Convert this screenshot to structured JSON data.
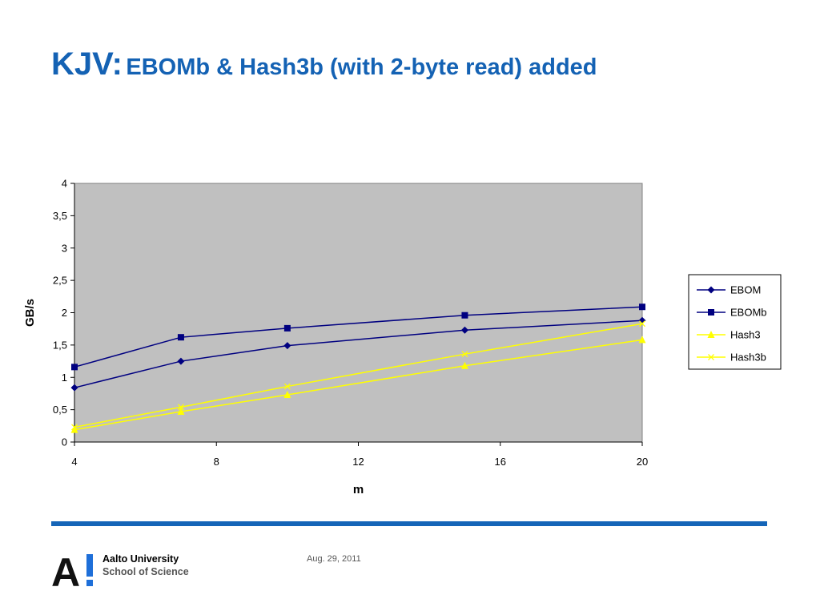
{
  "slide": {
    "title_main": "KJV:",
    "title_sub": "EBOMb & Hash3b (with 2-byte read) added",
    "footer": {
      "university_line1": "Aalto University",
      "university_line2": "School of Science",
      "logo_text": "A!",
      "date": "Aug. 29, 2011"
    }
  },
  "colors": {
    "title": "#1462b4",
    "rule": "#1565b8",
    "plot_background": "#c0c0c0",
    "logo_a": "#111111",
    "logo_bang": "#1e6fd9"
  },
  "chart_data": {
    "type": "line",
    "xlabel": "m",
    "ylabel": "GB/s",
    "xlim": [
      4,
      20
    ],
    "ylim": [
      0,
      4
    ],
    "xticks": [
      4,
      8,
      12,
      16,
      20
    ],
    "xtick_labels": [
      "4",
      "8",
      "12",
      "16",
      "20"
    ],
    "yticks": [
      0,
      0.5,
      1,
      1.5,
      2,
      2.5,
      3,
      3.5,
      4
    ],
    "ytick_labels": [
      "0",
      "0,5",
      "1",
      "1,5",
      "2",
      "2,5",
      "3",
      "3,5",
      "4"
    ],
    "grid": false,
    "legend_position": "right",
    "x": [
      4,
      7,
      10,
      15,
      20
    ],
    "series": [
      {
        "name": "EBOM",
        "values": [
          0.84,
          1.25,
          1.49,
          1.73,
          1.88
        ],
        "color": "#000080",
        "marker": "diamond"
      },
      {
        "name": "EBOMb",
        "values": [
          1.16,
          1.62,
          1.76,
          1.96,
          2.09
        ],
        "color": "#000080",
        "marker": "square"
      },
      {
        "name": "Hash3",
        "values": [
          0.19,
          0.47,
          0.73,
          1.18,
          1.58
        ],
        "color": "#ffff00",
        "marker": "triangle"
      },
      {
        "name": "Hash3b",
        "values": [
          0.23,
          0.54,
          0.86,
          1.36,
          1.83
        ],
        "color": "#ffff00",
        "marker": "x"
      }
    ]
  }
}
